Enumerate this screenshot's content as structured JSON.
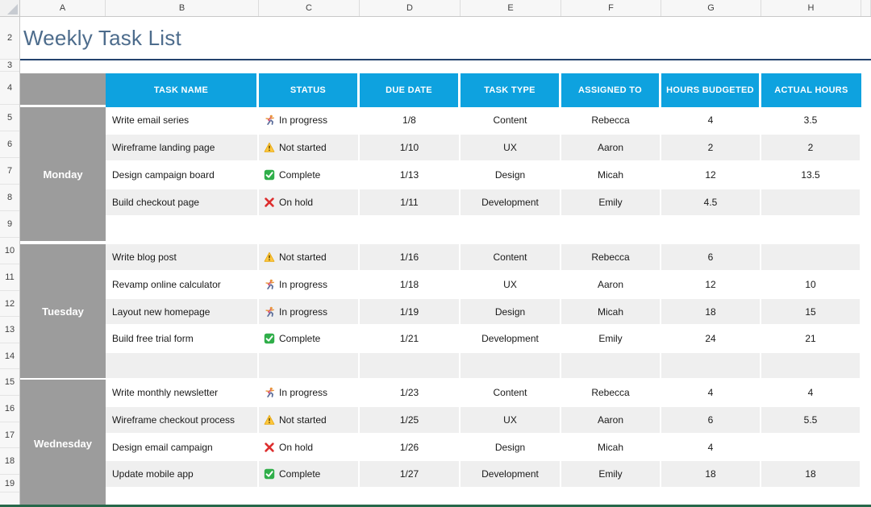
{
  "sheet": {
    "title": "Weekly Task List",
    "column_letters": [
      "A",
      "B",
      "C",
      "D",
      "E",
      "F",
      "G",
      "H"
    ],
    "row_numbers": [
      "2",
      "3",
      "4",
      "5",
      "6",
      "7",
      "8",
      "9",
      "10",
      "11",
      "12",
      "13",
      "14",
      "15",
      "16",
      "17",
      "18",
      "19"
    ]
  },
  "colors": {
    "header_blue": "#0EA2DF",
    "day_gray": "#9C9C9C",
    "band": "#EFEFEF",
    "title_color": "#4D6C8C",
    "title_underline": "#24426E",
    "bottom_line": "#26684A"
  },
  "table": {
    "headers": [
      "TASK NAME",
      "STATUS",
      "DUE DATE",
      "TASK TYPE",
      "ASSIGNED TO",
      "HOURS BUDGETED",
      "ACTUAL HOURS"
    ],
    "day_groups": [
      {
        "label": "Monday",
        "rows": "5-9"
      },
      {
        "label": "Tuesday",
        "rows": "10-14"
      },
      {
        "label": "Wednesday",
        "rows": "15-19"
      }
    ],
    "rows": [
      {
        "row": "5",
        "group": "Monday",
        "task": "Write email series",
        "status": "In progress",
        "status_icon": "runner-icon",
        "due_date": "1/8",
        "task_type": "Content",
        "assigned_to": "Rebecca",
        "hours_budgeted": "4",
        "actual_hours": "3.5"
      },
      {
        "row": "6",
        "group": "Monday",
        "task": "Wireframe landing page",
        "status": "Not started",
        "status_icon": "warning-icon",
        "due_date": "1/10",
        "task_type": "UX",
        "assigned_to": "Aaron",
        "hours_budgeted": "2",
        "actual_hours": "2"
      },
      {
        "row": "7",
        "group": "Monday",
        "task": "Design campaign board",
        "status": "Complete",
        "status_icon": "check-icon",
        "due_date": "1/13",
        "task_type": "Design",
        "assigned_to": "Micah",
        "hours_budgeted": "12",
        "actual_hours": "13.5"
      },
      {
        "row": "8",
        "group": "Monday",
        "task": "Build checkout page",
        "status": "On hold",
        "status_icon": "x-icon",
        "due_date": "1/11",
        "task_type": "Development",
        "assigned_to": "Emily",
        "hours_budgeted": "4.5",
        "actual_hours": ""
      },
      {
        "row": "9",
        "group": "Monday",
        "task": "",
        "status": "",
        "status_icon": "",
        "due_date": "",
        "task_type": "",
        "assigned_to": "",
        "hours_budgeted": "",
        "actual_hours": ""
      },
      {
        "row": "10",
        "group": "Tuesday",
        "task": "Write blog post",
        "status": "Not started",
        "status_icon": "warning-icon",
        "due_date": "1/16",
        "task_type": "Content",
        "assigned_to": "Rebecca",
        "hours_budgeted": "6",
        "actual_hours": ""
      },
      {
        "row": "11",
        "group": "Tuesday",
        "task": "Revamp online calculator",
        "status": "In progress",
        "status_icon": "runner-icon",
        "due_date": "1/18",
        "task_type": "UX",
        "assigned_to": "Aaron",
        "hours_budgeted": "12",
        "actual_hours": "10"
      },
      {
        "row": "12",
        "group": "Tuesday",
        "task": "Layout new homepage",
        "status": "In progress",
        "status_icon": "runner-icon",
        "due_date": "1/19",
        "task_type": "Design",
        "assigned_to": "Micah",
        "hours_budgeted": "18",
        "actual_hours": "15"
      },
      {
        "row": "13",
        "group": "Tuesday",
        "task": "Build free trial form",
        "status": "Complete",
        "status_icon": "check-icon",
        "due_date": "1/21",
        "task_type": "Development",
        "assigned_to": "Emily",
        "hours_budgeted": "24",
        "actual_hours": "21"
      },
      {
        "row": "14",
        "group": "Tuesday",
        "task": "",
        "status": "",
        "status_icon": "",
        "due_date": "",
        "task_type": "",
        "assigned_to": "",
        "hours_budgeted": "",
        "actual_hours": ""
      },
      {
        "row": "15",
        "group": "Wednesday",
        "task": "Write monthly newsletter",
        "status": "In progress",
        "status_icon": "runner-icon",
        "due_date": "1/23",
        "task_type": "Content",
        "assigned_to": "Rebecca",
        "hours_budgeted": "4",
        "actual_hours": "4"
      },
      {
        "row": "16",
        "group": "Wednesday",
        "task": "Wireframe checkout process",
        "status": "Not started",
        "status_icon": "warning-icon",
        "due_date": "1/25",
        "task_type": "UX",
        "assigned_to": "Aaron",
        "hours_budgeted": "6",
        "actual_hours": "5.5"
      },
      {
        "row": "17",
        "group": "Wednesday",
        "task": "Design email campaign",
        "status": "On hold",
        "status_icon": "x-icon",
        "due_date": "1/26",
        "task_type": "Design",
        "assigned_to": "Micah",
        "hours_budgeted": "4",
        "actual_hours": ""
      },
      {
        "row": "18",
        "group": "Wednesday",
        "task": "Update mobile app",
        "status": "Complete",
        "status_icon": "check-icon",
        "due_date": "1/27",
        "task_type": "Development",
        "assigned_to": "Emily",
        "hours_budgeted": "18",
        "actual_hours": "18"
      },
      {
        "row": "19",
        "group": "Wednesday",
        "task": "",
        "status": "",
        "status_icon": "",
        "due_date": "",
        "task_type": "",
        "assigned_to": "",
        "hours_budgeted": "",
        "actual_hours": ""
      }
    ]
  }
}
